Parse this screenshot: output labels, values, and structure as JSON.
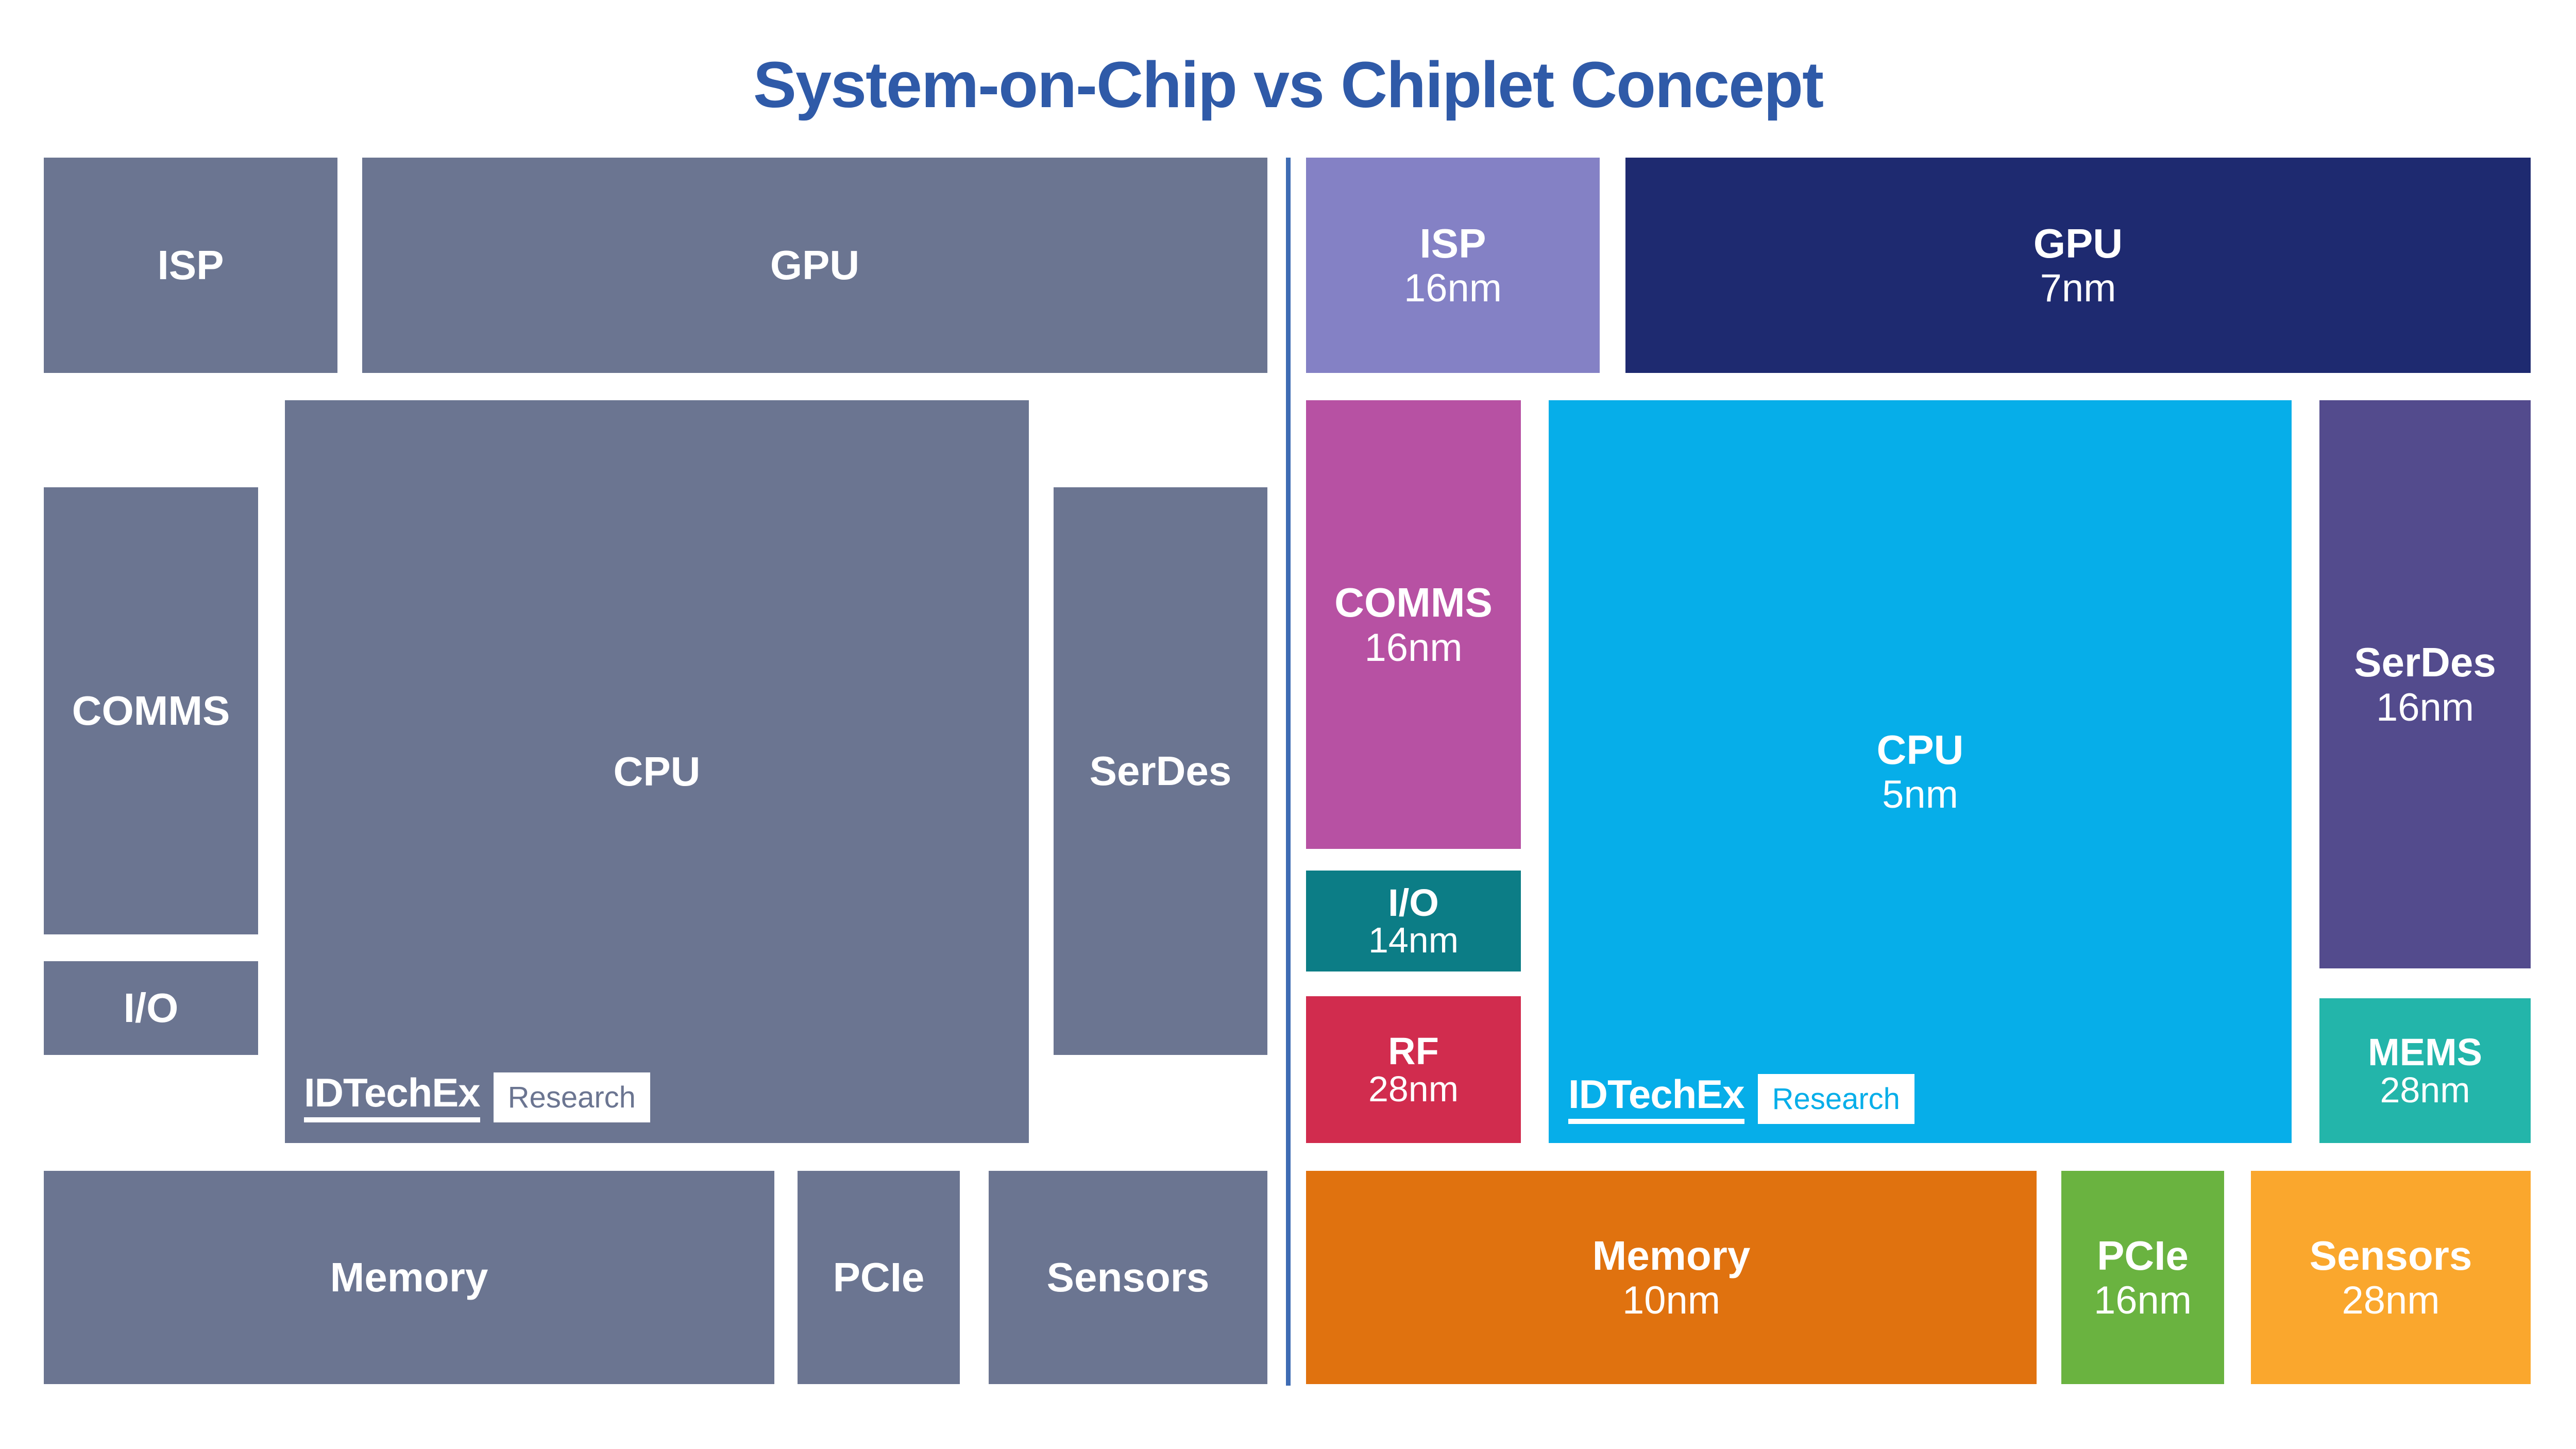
{
  "title": "System-on-Chip vs Chiplet Concept",
  "colors": {
    "title": "#2f5aa8",
    "divider": "#3f6cb4",
    "soc_gray": "#6b7591",
    "background": "#ffffff"
  },
  "soc": {
    "name": "System-on-Chip",
    "blocks": {
      "isp": {
        "label": "ISP"
      },
      "gpu": {
        "label": "GPU"
      },
      "comms": {
        "label": "COMMS"
      },
      "cpu": {
        "label": "CPU"
      },
      "serdes": {
        "label": "SerDes"
      },
      "io": {
        "label": "I/O"
      },
      "memory": {
        "label": "Memory"
      },
      "pcie": {
        "label": "PCIe"
      },
      "sensors": {
        "label": "Sensors"
      }
    }
  },
  "chiplet": {
    "name": "Chiplet Concept",
    "blocks": {
      "isp": {
        "label": "ISP",
        "node": "16nm",
        "color": "#8481c5"
      },
      "gpu": {
        "label": "GPU",
        "node": "7nm",
        "color": "#1e2a70"
      },
      "comms": {
        "label": "COMMS",
        "node": "16nm",
        "color": "#b751a3"
      },
      "cpu": {
        "label": "CPU",
        "node": "5nm",
        "color": "#06aee9"
      },
      "serdes": {
        "label": "SerDes",
        "node": "16nm",
        "color": "#534b8d"
      },
      "io": {
        "label": "I/O",
        "node": "14nm",
        "color": "#0c7d86"
      },
      "rf": {
        "label": "RF",
        "node": "28nm",
        "color": "#d12c4e"
      },
      "mems": {
        "label": "MEMS",
        "node": "28nm",
        "color": "#23b5aa"
      },
      "memory": {
        "label": "Memory",
        "node": "10nm",
        "color": "#e0720f"
      },
      "pcie": {
        "label": "PCIe",
        "node": "16nm",
        "color": "#6ab340"
      },
      "sensors": {
        "label": "Sensors",
        "node": "28nm",
        "color": "#faa72d"
      }
    }
  },
  "watermark": {
    "brand": "IDTechEx",
    "suffix": "Research",
    "soc_research_color": "#6b7591",
    "chiplet_research_color": "#06aee9"
  }
}
